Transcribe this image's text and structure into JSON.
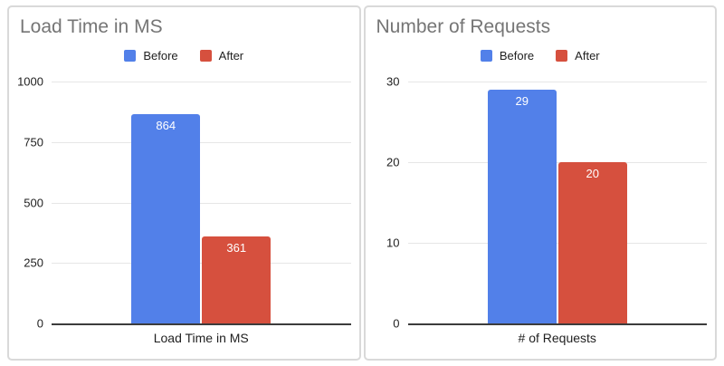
{
  "window": {
    "background": "#ffffff"
  },
  "colors": {
    "series_before": "#5280e9",
    "series_after": "#d6503e",
    "card_border": "#d9d9d9",
    "gridline": "#e6e6e6",
    "axis_line": "#3c3c3c",
    "title_text": "#757575",
    "axis_text": "#1f1f1f",
    "bar_label_text": "#ffffff"
  },
  "chart_data": [
    {
      "type": "bar",
      "title": "Load Time in MS",
      "categories": [
        "Load Time in MS"
      ],
      "series": [
        {
          "name": "Before",
          "color": "#5280e9",
          "values": [
            864
          ]
        },
        {
          "name": "After",
          "color": "#d6503e",
          "values": [
            361
          ]
        }
      ],
      "xlabel": "Load Time in MS",
      "ylabel": "",
      "ylim": [
        0,
        1000
      ],
      "yticks": [
        1000,
        750,
        500,
        250,
        0
      ],
      "grid": true,
      "legend_position": "top",
      "bar_value_labels": [
        864,
        361
      ]
    },
    {
      "type": "bar",
      "title": "Number of Requests",
      "categories": [
        "# of Requests"
      ],
      "series": [
        {
          "name": "Before",
          "color": "#5280e9",
          "values": [
            29
          ]
        },
        {
          "name": "After",
          "color": "#d6503e",
          "values": [
            20
          ]
        }
      ],
      "xlabel": "# of Requests",
      "ylabel": "",
      "ylim": [
        0,
        30
      ],
      "yticks": [
        30,
        20,
        10,
        0
      ],
      "grid": true,
      "legend_position": "top",
      "bar_value_labels": [
        29,
        20
      ]
    }
  ]
}
